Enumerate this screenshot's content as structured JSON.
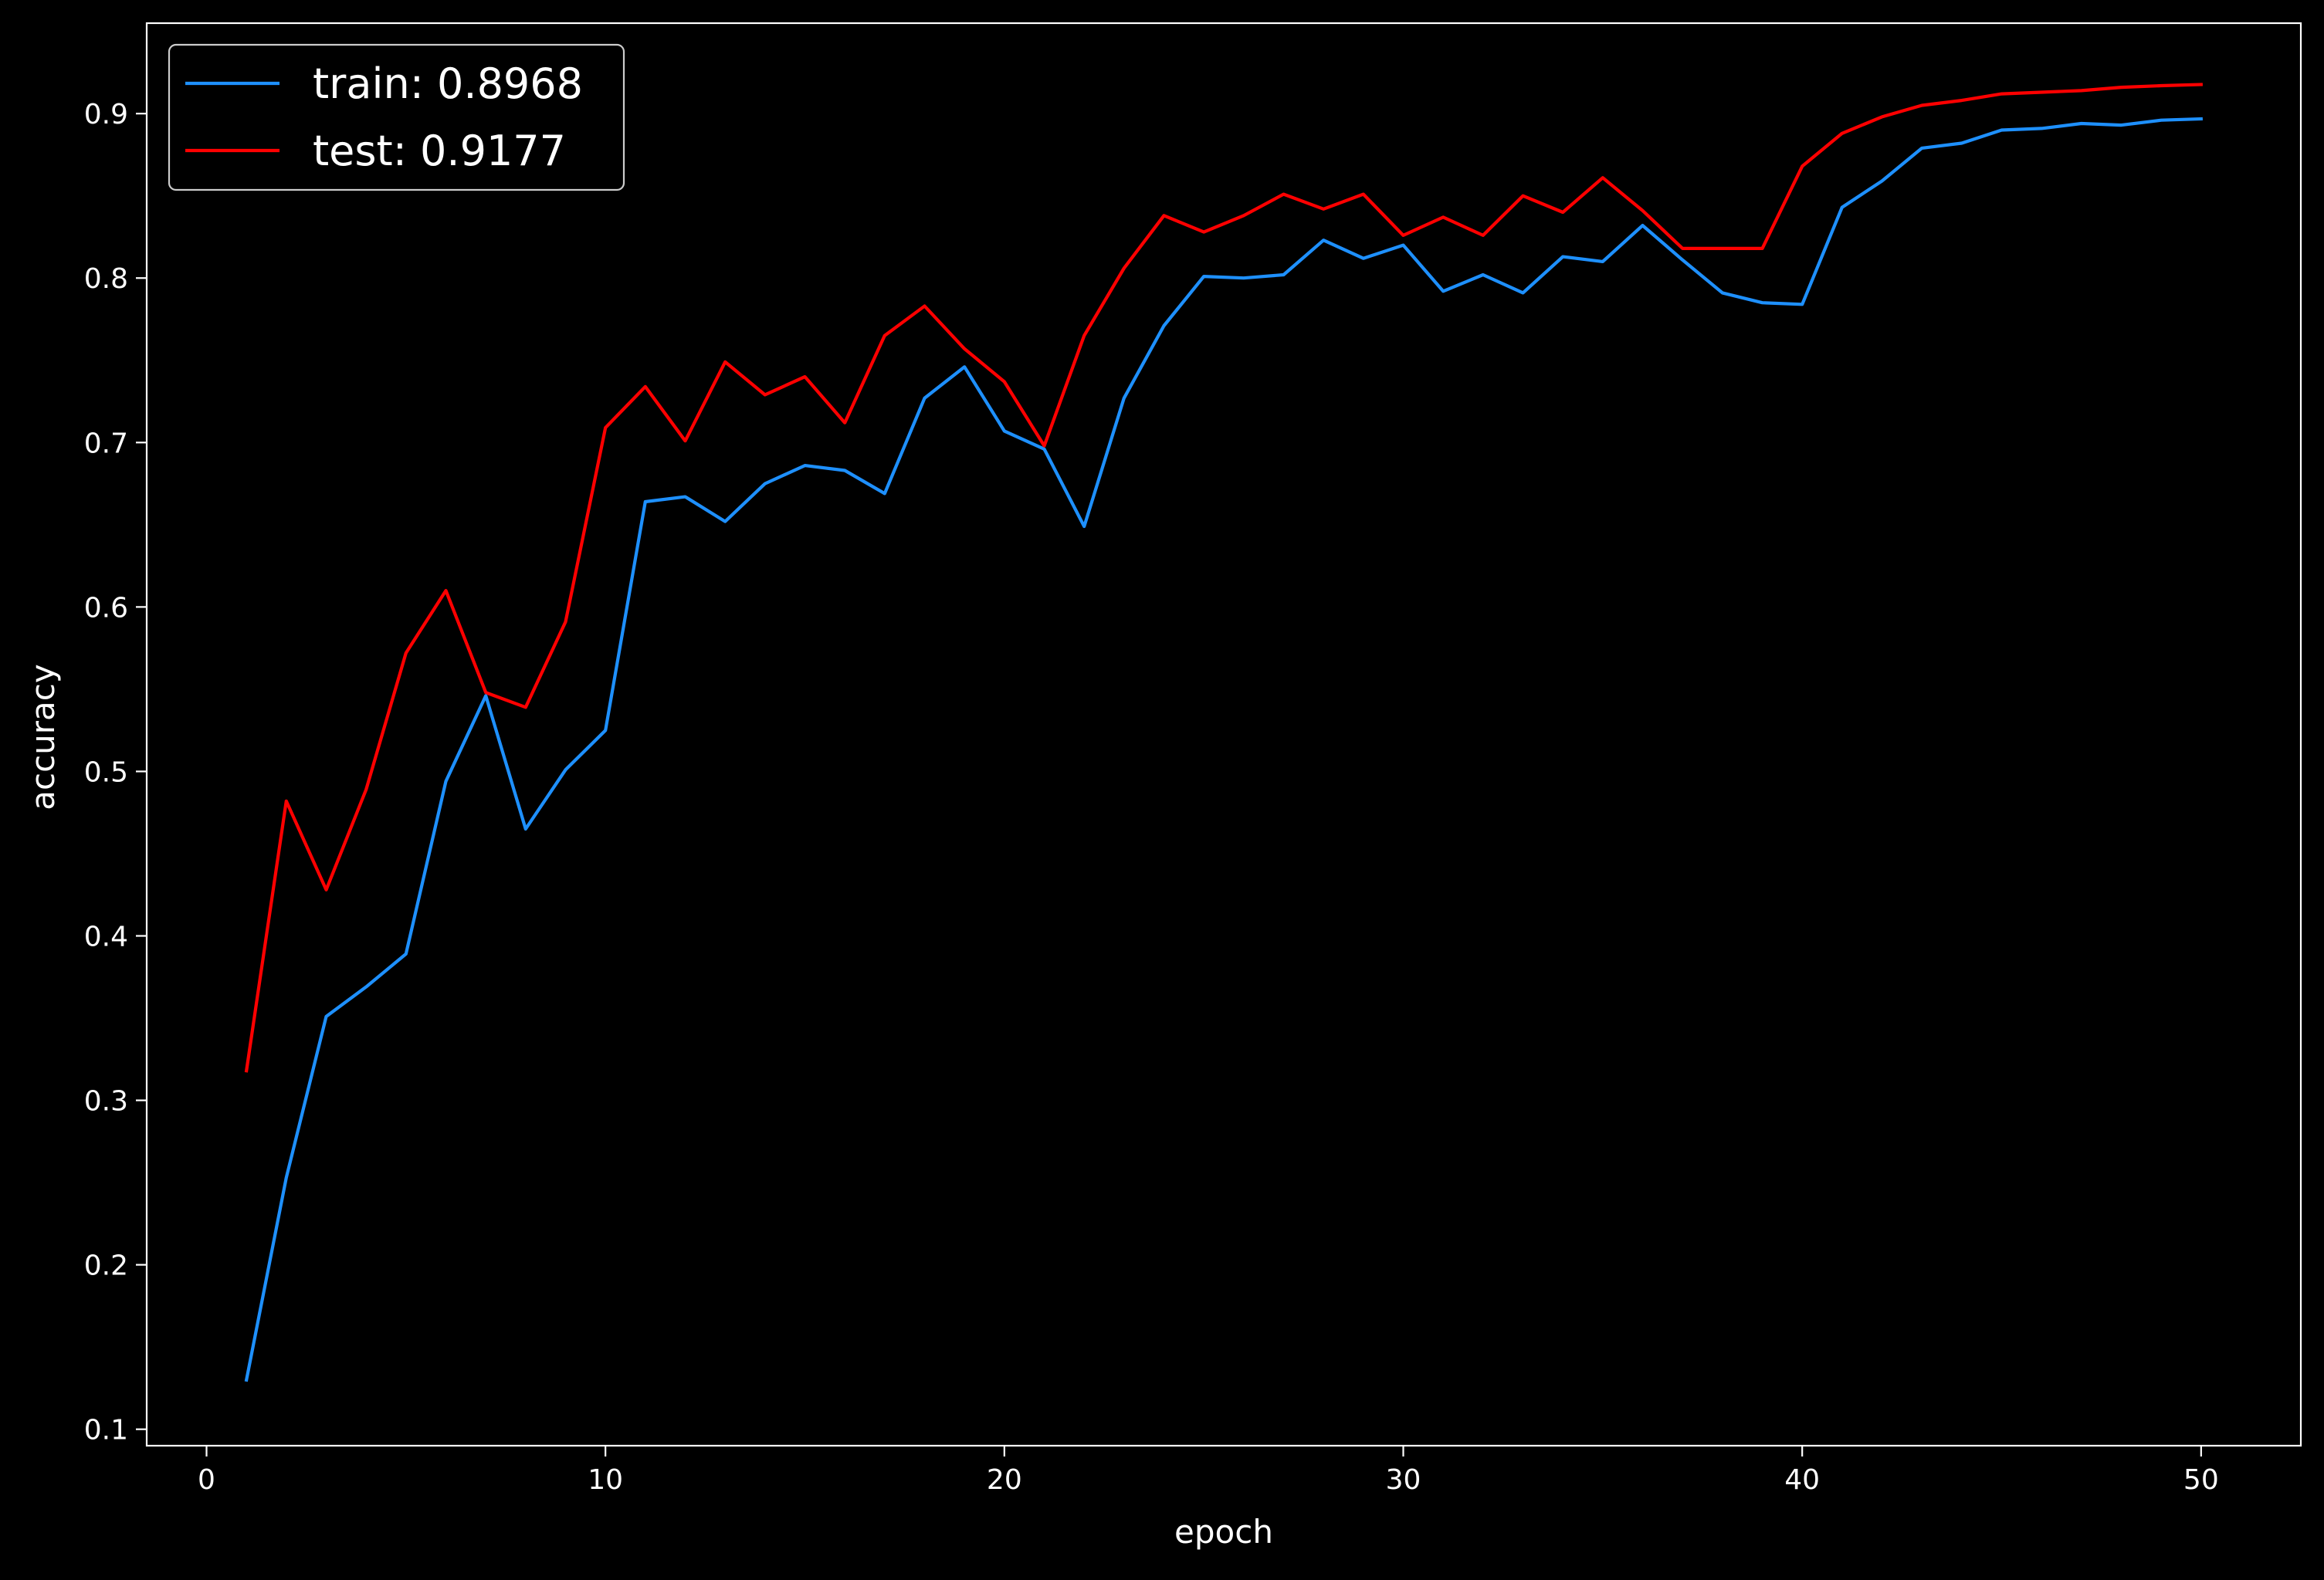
{
  "chart_data": {
    "type": "line",
    "title": "",
    "xlabel": "epoch",
    "ylabel": "accuracy",
    "xlim": [
      -1.5,
      52.5
    ],
    "ylim": [
      0.09,
      0.955
    ],
    "xticks": [
      0,
      10,
      20,
      30,
      40,
      50
    ],
    "yticks": [
      0.1,
      0.2,
      0.3,
      0.4,
      0.5,
      0.6,
      0.7,
      0.8,
      0.9
    ],
    "grid": false,
    "legend_position": "top-left",
    "background": "#000000",
    "foreground": "#ffffff",
    "x": [
      1,
      2,
      3,
      4,
      5,
      6,
      7,
      8,
      9,
      10,
      11,
      12,
      13,
      14,
      15,
      16,
      17,
      18,
      19,
      20,
      21,
      22,
      23,
      24,
      25,
      26,
      27,
      28,
      29,
      30,
      31,
      32,
      33,
      34,
      35,
      36,
      37,
      38,
      39,
      40,
      41,
      42,
      43,
      44,
      45,
      46,
      47,
      48,
      49,
      50
    ],
    "series": [
      {
        "name": "train: 0.8968",
        "color": "#1e90ff",
        "values": [
          0.13,
          0.253,
          0.351,
          0.369,
          0.389,
          0.494,
          0.546,
          0.465,
          0.501,
          0.525,
          0.664,
          0.667,
          0.652,
          0.675,
          0.686,
          0.683,
          0.669,
          0.727,
          0.746,
          0.707,
          0.696,
          0.649,
          0.727,
          0.771,
          0.801,
          0.8,
          0.802,
          0.823,
          0.812,
          0.82,
          0.792,
          0.802,
          0.791,
          0.813,
          0.81,
          0.832,
          0.811,
          0.791,
          0.785,
          0.784,
          0.843,
          0.859,
          0.879,
          0.882,
          0.89,
          0.891,
          0.894,
          0.893,
          0.896,
          0.8968
        ]
      },
      {
        "name": "test: 0.9177",
        "color": "#ff0000",
        "values": [
          0.318,
          0.482,
          0.428,
          0.489,
          0.572,
          0.61,
          0.548,
          0.539,
          0.591,
          0.709,
          0.734,
          0.701,
          0.749,
          0.729,
          0.74,
          0.712,
          0.765,
          0.783,
          0.757,
          0.737,
          0.698,
          0.765,
          0.806,
          0.838,
          0.828,
          0.838,
          0.851,
          0.842,
          0.851,
          0.826,
          0.837,
          0.826,
          0.85,
          0.84,
          0.861,
          0.841,
          0.818,
          0.818,
          0.818,
          0.868,
          0.888,
          0.898,
          0.905,
          0.908,
          0.912,
          0.913,
          0.914,
          0.916,
          0.917,
          0.9177
        ]
      }
    ]
  }
}
